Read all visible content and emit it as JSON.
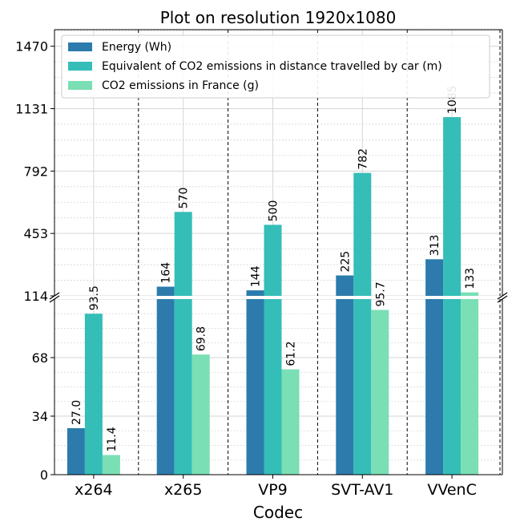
{
  "chart_data": {
    "type": "bar",
    "title": "Plot on resolution 1920x1080",
    "xlabel": "Codec",
    "ylabel": "",
    "categories": [
      "x264",
      "x265",
      "VP9",
      "SVT-AV1",
      "VVenC"
    ],
    "series": [
      {
        "name": "Energy (Wh)",
        "color": "#2c7bac",
        "values": [
          27.0,
          164,
          144,
          225,
          313
        ],
        "labels": [
          "27.0",
          "164",
          "144",
          "225",
          "313"
        ]
      },
      {
        "name": "Equivalent of CO2 emissions in distance travelled by car (m)",
        "color": "#35bdb8",
        "values": [
          93.5,
          570,
          500,
          782,
          1085
        ],
        "labels": [
          "93.5",
          "570",
          "500",
          "782",
          "1085"
        ]
      },
      {
        "name": "CO2 emissions in France (g)",
        "color": "#7adfb4",
        "values": [
          11.4,
          69.8,
          61.2,
          95.7,
          133
        ],
        "labels": [
          "11.4",
          "69.8",
          "61.2",
          "95.7",
          "133"
        ]
      }
    ],
    "broken_y_axis": true,
    "lower_ylim": [
      0,
      102
    ],
    "upper_ylim": [
      114,
      1560
    ],
    "lower_yticks": [
      "0",
      "34",
      "68",
      "102"
    ],
    "upper_yticks": [
      "114",
      "453",
      "792",
      "1131",
      "1470"
    ],
    "grid": true,
    "legend_position": "top-left"
  }
}
